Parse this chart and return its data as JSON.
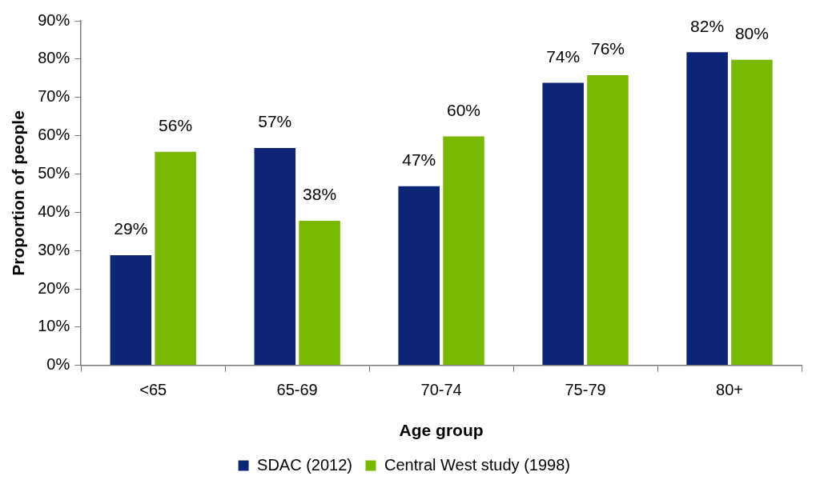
{
  "chart_data": {
    "type": "bar",
    "xlabel": "Age group",
    "ylabel": "Proportion of people",
    "categories": [
      "<65",
      "65-69",
      "70-74",
      "75-79",
      "80+"
    ],
    "series": [
      {
        "name": "SDAC (2012)",
        "color": "#0c2577",
        "values": [
          29,
          57,
          47,
          74,
          82
        ],
        "value_labels": [
          "29%",
          "57%",
          "47%",
          "74%",
          "82%"
        ]
      },
      {
        "name": "Central West study (1998)",
        "color": "#78b800",
        "values": [
          56,
          38,
          60,
          76,
          80
        ],
        "value_labels": [
          "56%",
          "38%",
          "60%",
          "76%",
          "80%"
        ]
      }
    ],
    "ylim": [
      0,
      90
    ],
    "yticks": [
      {
        "value": 0,
        "label": "0%"
      },
      {
        "value": 10,
        "label": "10%"
      },
      {
        "value": 20,
        "label": "20%"
      },
      {
        "value": 30,
        "label": "30%"
      },
      {
        "value": 40,
        "label": "40%"
      },
      {
        "value": 50,
        "label": "50%"
      },
      {
        "value": 60,
        "label": "60%"
      },
      {
        "value": 70,
        "label": "70%"
      },
      {
        "value": 80,
        "label": "80%"
      },
      {
        "value": 90,
        "label": "90%"
      }
    ],
    "grid": false,
    "legend": "bottom"
  }
}
